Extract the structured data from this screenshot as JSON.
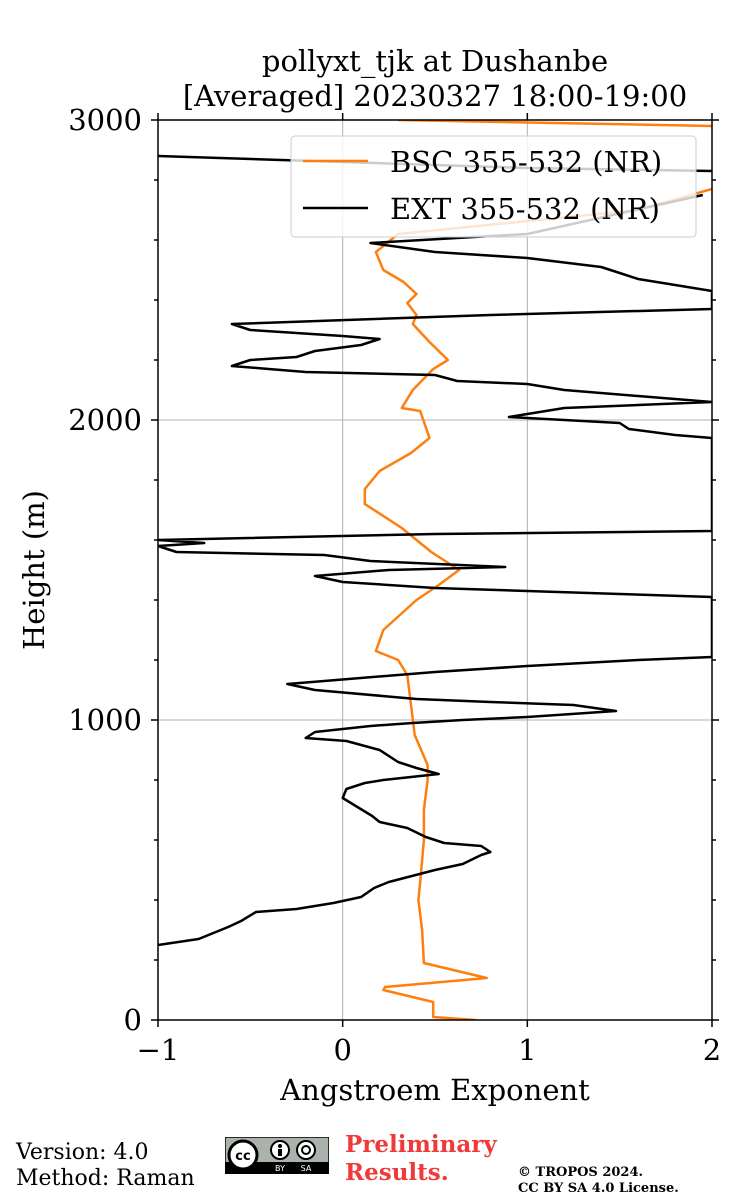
{
  "chart_data": {
    "type": "line",
    "title": [
      "pollyxt_tjk at Dushanbe",
      "[Averaged] 20230327 18:00-19:00"
    ],
    "xlabel": "Angstroem Exponent",
    "ylabel": "Height (m)",
    "xlim": [
      -1,
      2
    ],
    "ylim": [
      0,
      3000
    ],
    "xticks": [
      -1,
      0,
      1,
      2
    ],
    "xtick_labels": [
      "−1",
      "0",
      "1",
      "2"
    ],
    "yticks": [
      0,
      1000,
      2000,
      3000
    ],
    "ytick_labels": [
      "0",
      "1000",
      "2000",
      "3000"
    ],
    "grid": true,
    "legend_position": "top-right",
    "series": [
      {
        "name": "BSC 355-532 (NR)",
        "color": "#ff7f0e",
        "points": [
          [
            0.72,
            0
          ],
          [
            0.49,
            10
          ],
          [
            0.49,
            60
          ],
          [
            0.22,
            100
          ],
          [
            0.23,
            110
          ],
          [
            0.78,
            140
          ],
          [
            0.44,
            190
          ],
          [
            0.43,
            300
          ],
          [
            0.41,
            400
          ],
          [
            0.42,
            460
          ],
          [
            0.44,
            600
          ],
          [
            0.44,
            700
          ],
          [
            0.46,
            800
          ],
          [
            0.46,
            850
          ],
          [
            0.39,
            950
          ],
          [
            0.37,
            1050
          ],
          [
            0.35,
            1150
          ],
          [
            0.3,
            1200
          ],
          [
            0.18,
            1230
          ],
          [
            0.22,
            1300
          ],
          [
            0.4,
            1400
          ],
          [
            0.52,
            1450
          ],
          [
            0.63,
            1500
          ],
          [
            0.48,
            1560
          ],
          [
            0.32,
            1640
          ],
          [
            0.12,
            1720
          ],
          [
            0.12,
            1770
          ],
          [
            0.2,
            1830
          ],
          [
            0.37,
            1890
          ],
          [
            0.47,
            1940
          ],
          [
            0.42,
            2030
          ],
          [
            0.32,
            2040
          ],
          [
            0.38,
            2100
          ],
          [
            0.49,
            2170
          ],
          [
            0.57,
            2200
          ],
          [
            0.47,
            2260
          ],
          [
            0.38,
            2320
          ],
          [
            0.4,
            2350
          ],
          [
            0.35,
            2390
          ],
          [
            0.4,
            2420
          ],
          [
            0.33,
            2460
          ],
          [
            0.22,
            2500
          ],
          [
            0.18,
            2560
          ],
          [
            0.3,
            2620
          ],
          [
            1.6,
            2700
          ],
          [
            2.0,
            2770
          ]
        ],
        "top_segment": [
          [
            0.3,
            3000
          ],
          [
            2.0,
            2980
          ]
        ]
      },
      {
        "name": "EXT 355-532 (NR)",
        "color": "#000000",
        "points": [
          [
            -1.0,
            250
          ],
          [
            -0.78,
            270
          ],
          [
            -0.62,
            310
          ],
          [
            -0.55,
            330
          ],
          [
            -0.47,
            360
          ],
          [
            -0.25,
            370
          ],
          [
            -0.05,
            390
          ],
          [
            0.1,
            410
          ],
          [
            0.17,
            440
          ],
          [
            0.25,
            460
          ],
          [
            0.5,
            500
          ],
          [
            0.65,
            520
          ],
          [
            0.75,
            550
          ],
          [
            0.8,
            560
          ],
          [
            0.75,
            580
          ],
          [
            0.55,
            590
          ],
          [
            0.45,
            610
          ],
          [
            0.35,
            640
          ],
          [
            0.2,
            660
          ],
          [
            0.16,
            680
          ],
          [
            0.08,
            710
          ],
          [
            0.0,
            740
          ],
          [
            0.02,
            770
          ],
          [
            0.12,
            790
          ],
          [
            0.22,
            800
          ],
          [
            0.52,
            820
          ],
          [
            0.4,
            840
          ],
          [
            0.3,
            860
          ],
          [
            0.2,
            900
          ],
          [
            0.02,
            930
          ],
          [
            -0.2,
            940
          ],
          [
            -0.15,
            960
          ],
          [
            0.15,
            980
          ],
          [
            0.38,
            990
          ],
          [
            0.65,
            1000
          ],
          [
            1.0,
            1010
          ],
          [
            1.48,
            1030
          ],
          [
            1.25,
            1050
          ],
          [
            0.8,
            1060
          ],
          [
            0.4,
            1070
          ],
          [
            -0.15,
            1100
          ],
          [
            -0.3,
            1120
          ],
          [
            -0.1,
            1130
          ],
          [
            0.5,
            1160
          ],
          [
            1.0,
            1180
          ],
          [
            1.6,
            1200
          ],
          [
            2.0,
            1210
          ],
          [
            2.0,
            1410
          ],
          [
            1.5,
            1420
          ],
          [
            0.5,
            1440
          ],
          [
            0.0,
            1460
          ],
          [
            -0.15,
            1480
          ],
          [
            0.25,
            1500
          ],
          [
            0.88,
            1510
          ],
          [
            0.15,
            1530
          ],
          [
            -0.1,
            1550
          ],
          [
            -0.9,
            1560
          ],
          [
            -1.0,
            1580
          ],
          [
            -0.75,
            1590
          ],
          [
            -1.0,
            1600
          ],
          [
            0.5,
            1620
          ],
          [
            2.0,
            1630
          ],
          [
            2.0,
            1940
          ],
          [
            1.8,
            1950
          ],
          [
            1.55,
            1970
          ],
          [
            1.5,
            1990
          ],
          [
            1.2,
            2000
          ],
          [
            0.9,
            2010
          ],
          [
            1.2,
            2040
          ],
          [
            2.0,
            2060
          ],
          [
            1.6,
            2080
          ],
          [
            1.2,
            2100
          ],
          [
            1.0,
            2120
          ],
          [
            0.62,
            2130
          ],
          [
            0.5,
            2150
          ],
          [
            -0.2,
            2160
          ],
          [
            -0.4,
            2170
          ],
          [
            -0.6,
            2180
          ],
          [
            -0.55,
            2190
          ],
          [
            -0.5,
            2200
          ],
          [
            -0.25,
            2210
          ],
          [
            -0.2,
            2220
          ],
          [
            -0.15,
            2230
          ],
          [
            0.1,
            2250
          ],
          [
            0.2,
            2270
          ],
          [
            0.0,
            2280
          ],
          [
            -0.5,
            2300
          ],
          [
            -0.6,
            2320
          ],
          [
            0.8,
            2350
          ],
          [
            2.0,
            2370
          ],
          [
            2.0,
            2430
          ],
          [
            1.8,
            2450
          ],
          [
            1.6,
            2470
          ],
          [
            1.5,
            2490
          ],
          [
            1.4,
            2510
          ],
          [
            1.0,
            2540
          ],
          [
            0.5,
            2560
          ],
          [
            0.15,
            2590
          ],
          [
            1.0,
            2620
          ],
          [
            1.95,
            2750
          ]
        ],
        "top_segment": [
          [
            -1.0,
            2880
          ],
          [
            0.5,
            2850
          ],
          [
            1.0,
            2840
          ],
          [
            2.0,
            2830
          ]
        ]
      }
    ]
  },
  "footer": {
    "version_label": "Version: 4.0",
    "method_label": "Method: Raman",
    "preliminary_line1": "Preliminary",
    "preliminary_line2": "Results.",
    "copyright_line1": "© TROPOS 2024.",
    "copyright_line2": "CC BY SA 4.0 License.",
    "badge_cc": "cc",
    "badge_by": "BY",
    "badge_sa": "SA"
  }
}
